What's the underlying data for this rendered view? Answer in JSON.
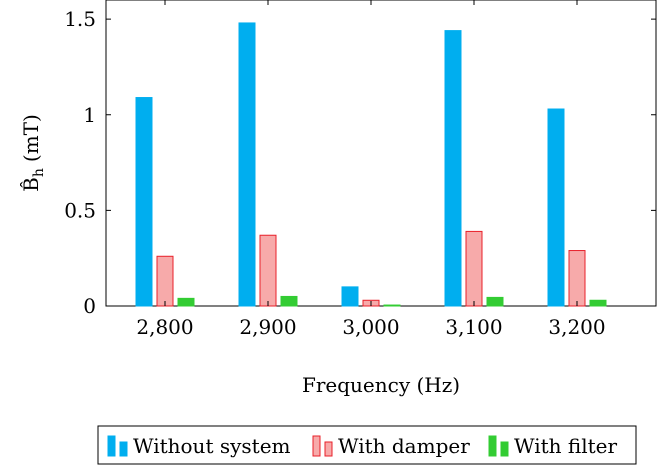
{
  "chart_data": {
    "type": "bar",
    "title": "",
    "xlabel": "Frequency (Hz)",
    "ylabel_main": "B̂",
    "ylabel_sub": "h",
    "ylabel_unit": "(mT)",
    "categories": [
      "2,800",
      "2,900",
      "3,000",
      "3,100",
      "3,200"
    ],
    "ylim": [
      0,
      1.6
    ],
    "yticks": [
      0,
      0.5,
      1,
      1.5
    ],
    "ytick_labels": [
      "0",
      "0.5",
      "1",
      "1.5"
    ],
    "grid": false,
    "legend_position": "bottom",
    "series": [
      {
        "name": "Without system",
        "values": [
          1.09,
          1.48,
          0.1,
          1.44,
          1.03
        ],
        "fill": "#00aeef",
        "stroke": "#00aeef"
      },
      {
        "name": "With damper",
        "values": [
          0.26,
          0.37,
          0.03,
          0.39,
          0.29
        ],
        "fill": "#f7aaaa",
        "stroke": "#e8202a"
      },
      {
        "name": "With filter",
        "values": [
          0.04,
          0.05,
          0.005,
          0.045,
          0.03
        ],
        "fill": "#33cc33",
        "stroke": "#33cc33"
      }
    ]
  }
}
